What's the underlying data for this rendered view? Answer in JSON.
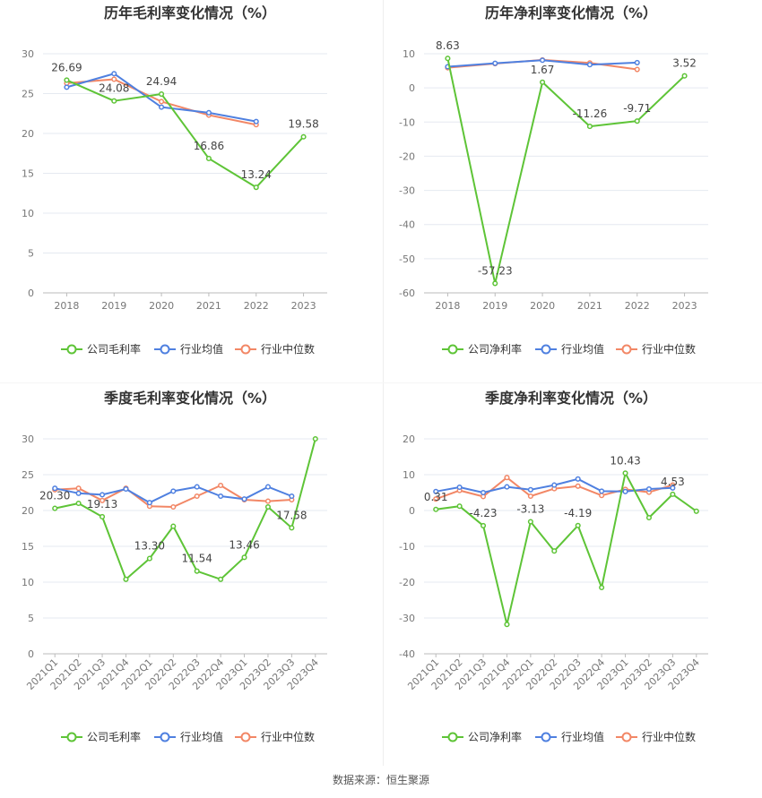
{
  "footer": {
    "source_label": "数据来源：",
    "source_name": "恒生聚源"
  },
  "colors": {
    "company": "#5ec437",
    "industry_avg": "#4f80e0",
    "industry_median": "#f28766",
    "grid": "#e5e9f0",
    "axis_text": "#777777",
    "label_text": "#444444"
  },
  "chart_data": [
    {
      "type": "line",
      "title": "历年毛利率变化情况（%）",
      "categories": [
        "2018",
        "2019",
        "2020",
        "2021",
        "2022",
        "2023"
      ],
      "ylim": [
        0,
        30
      ],
      "yticks": [
        0,
        5,
        10,
        15,
        20,
        25,
        30
      ],
      "rotate_x_labels": false,
      "series": [
        {
          "name": "公司毛利率",
          "values": [
            26.69,
            24.08,
            24.94,
            16.86,
            13.24,
            19.58
          ]
        },
        {
          "name": "行业均值",
          "values": [
            25.8,
            27.5,
            23.3,
            22.6,
            21.5,
            null
          ]
        },
        {
          "name": "行业中位数",
          "values": [
            26.3,
            26.8,
            24.0,
            22.3,
            21.1,
            null
          ]
        }
      ],
      "data_labels": [
        {
          "index": 0,
          "text": "26.69",
          "pos": "above"
        },
        {
          "index": 1,
          "text": "24.08",
          "pos": "above"
        },
        {
          "index": 2,
          "text": "24.94",
          "pos": "above"
        },
        {
          "index": 3,
          "text": "16.86",
          "pos": "above"
        },
        {
          "index": 4,
          "text": "13.24",
          "pos": "above"
        },
        {
          "index": 5,
          "text": "19.58",
          "pos": "above"
        }
      ]
    },
    {
      "type": "line",
      "title": "历年净利率变化情况（%）",
      "categories": [
        "2018",
        "2019",
        "2020",
        "2021",
        "2022",
        "2023"
      ],
      "ylim": [
        -60,
        10
      ],
      "yticks": [
        -60,
        -50,
        -40,
        -30,
        -20,
        -10,
        0,
        10
      ],
      "rotate_x_labels": false,
      "series": [
        {
          "name": "公司净利率",
          "values": [
            8.63,
            -57.23,
            1.67,
            -11.26,
            -9.71,
            3.52
          ]
        },
        {
          "name": "行业均值",
          "values": [
            6.2,
            7.2,
            8.1,
            6.8,
            7.4,
            null
          ]
        },
        {
          "name": "行业中位数",
          "values": [
            5.9,
            7.1,
            8.2,
            7.3,
            5.4,
            null
          ]
        }
      ],
      "data_labels": [
        {
          "index": 0,
          "text": "8.63",
          "pos": "above"
        },
        {
          "index": 1,
          "text": "-57.23",
          "pos": "above"
        },
        {
          "index": 2,
          "text": "1.67",
          "pos": "above"
        },
        {
          "index": 3,
          "text": "-11.26",
          "pos": "above"
        },
        {
          "index": 4,
          "text": "-9.71",
          "pos": "above"
        },
        {
          "index": 5,
          "text": "3.52",
          "pos": "above"
        }
      ]
    },
    {
      "type": "line",
      "title": "季度毛利率变化情况（%）",
      "categories": [
        "2021Q1",
        "2021Q2",
        "2021Q3",
        "2021Q4",
        "2022Q1",
        "2022Q2",
        "2022Q3",
        "2022Q4",
        "2023Q1",
        "2023Q2",
        "2023Q3",
        "2023Q4"
      ],
      "ylim": [
        0,
        30
      ],
      "yticks": [
        0,
        5,
        10,
        15,
        20,
        25,
        30
      ],
      "rotate_x_labels": true,
      "series": [
        {
          "name": "公司毛利率",
          "values": [
            20.3,
            21.0,
            19.13,
            10.4,
            13.3,
            17.8,
            11.54,
            10.4,
            13.46,
            20.5,
            17.58,
            30.0
          ]
        },
        {
          "name": "行业均值",
          "values": [
            23.1,
            22.4,
            22.2,
            23.0,
            21.1,
            22.7,
            23.3,
            22.0,
            21.6,
            23.3,
            22.0,
            null
          ]
        },
        {
          "name": "行业中位数",
          "values": [
            22.9,
            23.1,
            21.4,
            23.1,
            20.6,
            20.5,
            22.0,
            23.5,
            21.5,
            21.3,
            21.5,
            null
          ]
        }
      ],
      "data_labels": [
        {
          "index": 0,
          "text": "20.30",
          "pos": "above"
        },
        {
          "index": 2,
          "text": "19.13",
          "pos": "above"
        },
        {
          "index": 4,
          "text": "13.30",
          "pos": "above"
        },
        {
          "index": 6,
          "text": "11.54",
          "pos": "above"
        },
        {
          "index": 8,
          "text": "13.46",
          "pos": "above"
        },
        {
          "index": 10,
          "text": "17.58",
          "pos": "above"
        }
      ]
    },
    {
      "type": "line",
      "title": "季度净利率变化情况（%）",
      "categories": [
        "2021Q1",
        "2021Q2",
        "2021Q3",
        "2021Q4",
        "2022Q1",
        "2022Q2",
        "2022Q3",
        "2022Q4",
        "2023Q1",
        "2023Q2",
        "2023Q3",
        "2023Q4"
      ],
      "ylim": [
        -40,
        20
      ],
      "yticks": [
        -40,
        -30,
        -20,
        -10,
        0,
        10,
        20
      ],
      "rotate_x_labels": true,
      "series": [
        {
          "name": "公司净利率",
          "values": [
            0.31,
            1.2,
            -4.23,
            -31.8,
            -3.13,
            -11.3,
            -4.19,
            -21.5,
            10.43,
            -2.0,
            4.53,
            -0.2
          ]
        },
        {
          "name": "行业均值",
          "values": [
            5.3,
            6.5,
            5.0,
            6.6,
            5.8,
            7.1,
            8.8,
            5.4,
            5.3,
            6.0,
            6.3,
            null
          ]
        },
        {
          "name": "行业中位数",
          "values": [
            3.2,
            5.6,
            3.9,
            9.2,
            4.0,
            6.1,
            6.8,
            4.2,
            5.9,
            5.1,
            7.1,
            null
          ]
        }
      ],
      "data_labels": [
        {
          "index": 0,
          "text": "0.31",
          "pos": "above"
        },
        {
          "index": 2,
          "text": "-4.23",
          "pos": "above"
        },
        {
          "index": 4,
          "text": "-3.13",
          "pos": "above"
        },
        {
          "index": 6,
          "text": "-4.19",
          "pos": "above"
        },
        {
          "index": 8,
          "text": "10.43",
          "pos": "above"
        },
        {
          "index": 10,
          "text": "4.53",
          "pos": "above"
        }
      ]
    }
  ]
}
